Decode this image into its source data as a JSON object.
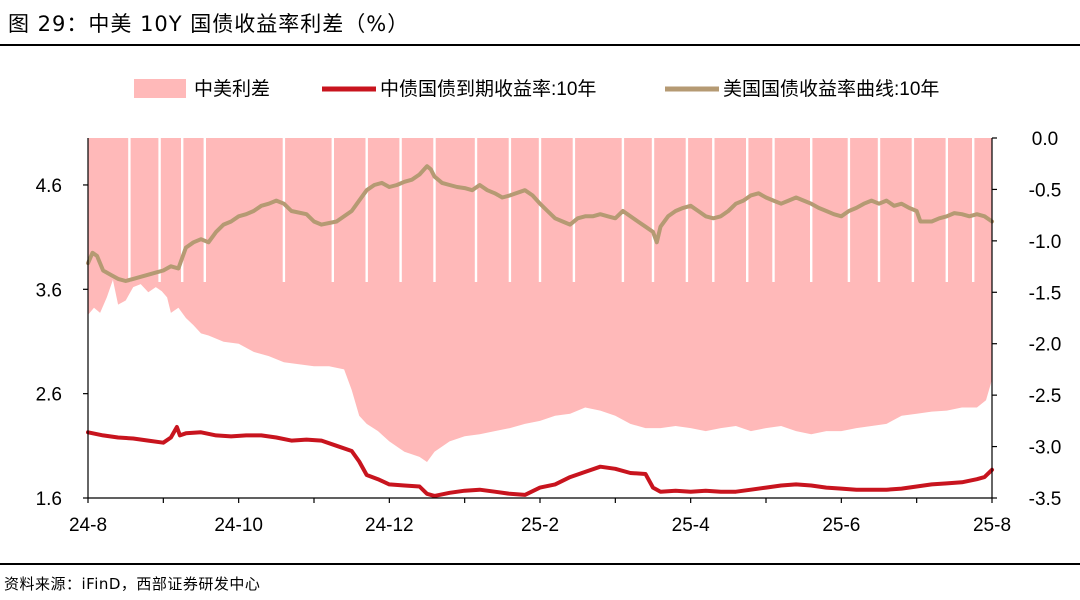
{
  "title": "图 29：中美 10Y 国债收益率利差（%）",
  "source": "资料来源：iFinD，西部证券研发中心",
  "colors": {
    "spread": "#ffb9b9",
    "cn10y": "#c8141e",
    "us10y": "#b59a73",
    "axis": "#000000"
  },
  "chart_data": {
    "type": "area",
    "legend_position": "top",
    "grid": false,
    "x_ticks": [
      "24-8",
      "24-10",
      "24-12",
      "25-2",
      "25-4",
      "25-6",
      "25-8"
    ],
    "x_tick_months": [
      0,
      2,
      4,
      6,
      8,
      10,
      12
    ],
    "x_range_months": [
      0,
      12.0
    ],
    "y_left": {
      "ticks": [
        "4.6",
        "3.6",
        "2.6",
        "1.6"
      ],
      "range": [
        1.6,
        5.05
      ]
    },
    "y_right": {
      "ticks": [
        "0.0",
        "-0.5",
        "-1.0",
        "-1.5",
        "-2.0",
        "-2.5",
        "-3.0",
        "-3.5"
      ],
      "range": [
        -3.5,
        0.0
      ]
    },
    "series": [
      {
        "name": "中美利差",
        "axis": "right",
        "kind": "area",
        "points": [
          [
            0.0,
            -1.72
          ],
          [
            0.08,
            -1.65
          ],
          [
            0.16,
            -1.7
          ],
          [
            0.25,
            -1.55
          ],
          [
            0.33,
            -1.38
          ],
          [
            0.4,
            -1.62
          ],
          [
            0.5,
            -1.58
          ],
          [
            0.6,
            -1.45
          ],
          [
            0.7,
            -1.42
          ],
          [
            0.8,
            -1.5
          ],
          [
            0.9,
            -1.45
          ],
          [
            0.98,
            -1.49
          ],
          [
            1.05,
            -1.55
          ],
          [
            1.1,
            -1.7
          ],
          [
            1.2,
            -1.65
          ],
          [
            1.3,
            -1.75
          ],
          [
            1.4,
            -1.82
          ],
          [
            1.5,
            -1.9
          ],
          [
            1.6,
            -1.92
          ],
          [
            1.7,
            -1.95
          ],
          [
            1.8,
            -1.98
          ],
          [
            2.0,
            -2.0
          ],
          [
            2.2,
            -2.08
          ],
          [
            2.4,
            -2.12
          ],
          [
            2.6,
            -2.18
          ],
          [
            2.8,
            -2.2
          ],
          [
            3.0,
            -2.22
          ],
          [
            3.2,
            -2.22
          ],
          [
            3.4,
            -2.25
          ],
          [
            3.5,
            -2.45
          ],
          [
            3.6,
            -2.7
          ],
          [
            3.7,
            -2.78
          ],
          [
            3.85,
            -2.85
          ],
          [
            4.0,
            -2.95
          ],
          [
            4.2,
            -3.05
          ],
          [
            4.4,
            -3.1
          ],
          [
            4.5,
            -3.15
          ],
          [
            4.6,
            -3.05
          ],
          [
            4.8,
            -2.95
          ],
          [
            5.0,
            -2.9
          ],
          [
            5.2,
            -2.88
          ],
          [
            5.4,
            -2.85
          ],
          [
            5.6,
            -2.82
          ],
          [
            5.8,
            -2.78
          ],
          [
            6.0,
            -2.75
          ],
          [
            6.2,
            -2.7
          ],
          [
            6.4,
            -2.68
          ],
          [
            6.6,
            -2.62
          ],
          [
            6.8,
            -2.65
          ],
          [
            7.0,
            -2.7
          ],
          [
            7.2,
            -2.78
          ],
          [
            7.4,
            -2.82
          ],
          [
            7.6,
            -2.82
          ],
          [
            7.8,
            -2.8
          ],
          [
            8.0,
            -2.82
          ],
          [
            8.2,
            -2.85
          ],
          [
            8.4,
            -2.82
          ],
          [
            8.6,
            -2.8
          ],
          [
            8.8,
            -2.85
          ],
          [
            9.0,
            -2.82
          ],
          [
            9.2,
            -2.8
          ],
          [
            9.4,
            -2.85
          ],
          [
            9.6,
            -2.88
          ],
          [
            9.8,
            -2.85
          ],
          [
            10.0,
            -2.85
          ],
          [
            10.2,
            -2.82
          ],
          [
            10.4,
            -2.8
          ],
          [
            10.6,
            -2.78
          ],
          [
            10.8,
            -2.7
          ],
          [
            11.0,
            -2.68
          ],
          [
            11.2,
            -2.66
          ],
          [
            11.4,
            -2.65
          ],
          [
            11.6,
            -2.62
          ],
          [
            11.8,
            -2.62
          ],
          [
            11.92,
            -2.55
          ],
          [
            12.0,
            -2.35
          ]
        ],
        "gaps_to_zero": [
          0.55,
          0.95,
          1.25,
          1.55,
          2.6,
          3.25,
          3.7,
          4.15,
          4.6,
          5.15,
          5.6,
          6.0,
          6.45,
          7.1,
          7.5,
          7.95,
          8.3,
          8.75,
          9.1,
          9.6,
          10.1,
          10.5,
          10.95,
          11.4,
          11.75
        ]
      },
      {
        "name": "中债国债到期收益率:10年",
        "axis": "left",
        "kind": "line",
        "points": [
          [
            0.0,
            2.23
          ],
          [
            0.2,
            2.2
          ],
          [
            0.4,
            2.18
          ],
          [
            0.6,
            2.17
          ],
          [
            0.8,
            2.15
          ],
          [
            1.0,
            2.13
          ],
          [
            1.1,
            2.18
          ],
          [
            1.18,
            2.28
          ],
          [
            1.22,
            2.2
          ],
          [
            1.3,
            2.22
          ],
          [
            1.5,
            2.23
          ],
          [
            1.7,
            2.2
          ],
          [
            1.9,
            2.19
          ],
          [
            2.1,
            2.2
          ],
          [
            2.3,
            2.2
          ],
          [
            2.5,
            2.18
          ],
          [
            2.7,
            2.15
          ],
          [
            2.9,
            2.16
          ],
          [
            3.1,
            2.15
          ],
          [
            3.3,
            2.1
          ],
          [
            3.5,
            2.05
          ],
          [
            3.6,
            1.95
          ],
          [
            3.7,
            1.82
          ],
          [
            3.85,
            1.78
          ],
          [
            4.0,
            1.73
          ],
          [
            4.2,
            1.72
          ],
          [
            4.4,
            1.71
          ],
          [
            4.5,
            1.64
          ],
          [
            4.6,
            1.62
          ],
          [
            4.8,
            1.65
          ],
          [
            5.0,
            1.67
          ],
          [
            5.2,
            1.68
          ],
          [
            5.4,
            1.66
          ],
          [
            5.6,
            1.64
          ],
          [
            5.8,
            1.63
          ],
          [
            6.0,
            1.7
          ],
          [
            6.2,
            1.73
          ],
          [
            6.4,
            1.8
          ],
          [
            6.6,
            1.85
          ],
          [
            6.8,
            1.9
          ],
          [
            7.0,
            1.88
          ],
          [
            7.2,
            1.84
          ],
          [
            7.4,
            1.83
          ],
          [
            7.5,
            1.7
          ],
          [
            7.6,
            1.66
          ],
          [
            7.8,
            1.67
          ],
          [
            8.0,
            1.66
          ],
          [
            8.2,
            1.67
          ],
          [
            8.4,
            1.66
          ],
          [
            8.6,
            1.66
          ],
          [
            8.8,
            1.68
          ],
          [
            9.0,
            1.7
          ],
          [
            9.2,
            1.72
          ],
          [
            9.4,
            1.73
          ],
          [
            9.6,
            1.72
          ],
          [
            9.8,
            1.7
          ],
          [
            10.0,
            1.69
          ],
          [
            10.2,
            1.68
          ],
          [
            10.4,
            1.68
          ],
          [
            10.6,
            1.68
          ],
          [
            10.8,
            1.69
          ],
          [
            11.0,
            1.71
          ],
          [
            11.2,
            1.73
          ],
          [
            11.4,
            1.74
          ],
          [
            11.6,
            1.75
          ],
          [
            11.8,
            1.78
          ],
          [
            11.9,
            1.8
          ],
          [
            12.0,
            1.87
          ]
        ]
      },
      {
        "name": "美国国债收益率曲线:10年",
        "axis": "left",
        "kind": "line",
        "points": [
          [
            0.0,
            3.85
          ],
          [
            0.06,
            3.95
          ],
          [
            0.12,
            3.92
          ],
          [
            0.2,
            3.78
          ],
          [
            0.3,
            3.74
          ],
          [
            0.4,
            3.7
          ],
          [
            0.5,
            3.68
          ],
          [
            0.6,
            3.7
          ],
          [
            0.7,
            3.72
          ],
          [
            0.8,
            3.74
          ],
          [
            0.9,
            3.76
          ],
          [
            1.0,
            3.78
          ],
          [
            1.1,
            3.82
          ],
          [
            1.2,
            3.8
          ],
          [
            1.3,
            4.0
          ],
          [
            1.4,
            4.05
          ],
          [
            1.5,
            4.08
          ],
          [
            1.6,
            4.05
          ],
          [
            1.7,
            4.15
          ],
          [
            1.8,
            4.22
          ],
          [
            1.9,
            4.25
          ],
          [
            2.0,
            4.3
          ],
          [
            2.1,
            4.32
          ],
          [
            2.2,
            4.35
          ],
          [
            2.3,
            4.4
          ],
          [
            2.4,
            4.42
          ],
          [
            2.5,
            4.45
          ],
          [
            2.6,
            4.42
          ],
          [
            2.7,
            4.35
          ],
          [
            2.9,
            4.32
          ],
          [
            3.0,
            4.25
          ],
          [
            3.1,
            4.22
          ],
          [
            3.3,
            4.25
          ],
          [
            3.5,
            4.35
          ],
          [
            3.6,
            4.45
          ],
          [
            3.7,
            4.55
          ],
          [
            3.8,
            4.6
          ],
          [
            3.9,
            4.62
          ],
          [
            4.0,
            4.58
          ],
          [
            4.1,
            4.6
          ],
          [
            4.2,
            4.63
          ],
          [
            4.3,
            4.65
          ],
          [
            4.4,
            4.7
          ],
          [
            4.5,
            4.78
          ],
          [
            4.55,
            4.75
          ],
          [
            4.6,
            4.68
          ],
          [
            4.7,
            4.62
          ],
          [
            4.8,
            4.6
          ],
          [
            4.9,
            4.58
          ],
          [
            5.0,
            4.57
          ],
          [
            5.1,
            4.55
          ],
          [
            5.2,
            4.6
          ],
          [
            5.3,
            4.55
          ],
          [
            5.4,
            4.52
          ],
          [
            5.5,
            4.48
          ],
          [
            5.6,
            4.5
          ],
          [
            5.8,
            4.55
          ],
          [
            5.9,
            4.5
          ],
          [
            6.0,
            4.42
          ],
          [
            6.1,
            4.35
          ],
          [
            6.2,
            4.28
          ],
          [
            6.3,
            4.25
          ],
          [
            6.4,
            4.22
          ],
          [
            6.5,
            4.28
          ],
          [
            6.6,
            4.3
          ],
          [
            6.7,
            4.3
          ],
          [
            6.8,
            4.32
          ],
          [
            6.9,
            4.3
          ],
          [
            7.0,
            4.28
          ],
          [
            7.1,
            4.35
          ],
          [
            7.2,
            4.3
          ],
          [
            7.3,
            4.25
          ],
          [
            7.4,
            4.2
          ],
          [
            7.5,
            4.15
          ],
          [
            7.55,
            4.05
          ],
          [
            7.6,
            4.2
          ],
          [
            7.7,
            4.3
          ],
          [
            7.8,
            4.35
          ],
          [
            7.9,
            4.38
          ],
          [
            8.0,
            4.4
          ],
          [
            8.1,
            4.35
          ],
          [
            8.2,
            4.3
          ],
          [
            8.3,
            4.28
          ],
          [
            8.4,
            4.3
          ],
          [
            8.5,
            4.35
          ],
          [
            8.6,
            4.42
          ],
          [
            8.7,
            4.45
          ],
          [
            8.8,
            4.5
          ],
          [
            8.9,
            4.52
          ],
          [
            9.0,
            4.48
          ],
          [
            9.1,
            4.45
          ],
          [
            9.2,
            4.42
          ],
          [
            9.3,
            4.45
          ],
          [
            9.4,
            4.48
          ],
          [
            9.5,
            4.45
          ],
          [
            9.6,
            4.42
          ],
          [
            9.7,
            4.38
          ],
          [
            9.8,
            4.35
          ],
          [
            9.9,
            4.32
          ],
          [
            10.0,
            4.3
          ],
          [
            10.1,
            4.35
          ],
          [
            10.2,
            4.38
          ],
          [
            10.3,
            4.42
          ],
          [
            10.4,
            4.45
          ],
          [
            10.5,
            4.42
          ],
          [
            10.6,
            4.45
          ],
          [
            10.7,
            4.4
          ],
          [
            10.8,
            4.42
          ],
          [
            10.9,
            4.38
          ],
          [
            11.0,
            4.35
          ],
          [
            11.05,
            4.25
          ],
          [
            11.2,
            4.25
          ],
          [
            11.3,
            4.28
          ],
          [
            11.4,
            4.3
          ],
          [
            11.5,
            4.33
          ],
          [
            11.6,
            4.32
          ],
          [
            11.7,
            4.3
          ],
          [
            11.8,
            4.32
          ],
          [
            11.9,
            4.3
          ],
          [
            12.0,
            4.25
          ]
        ]
      }
    ]
  }
}
